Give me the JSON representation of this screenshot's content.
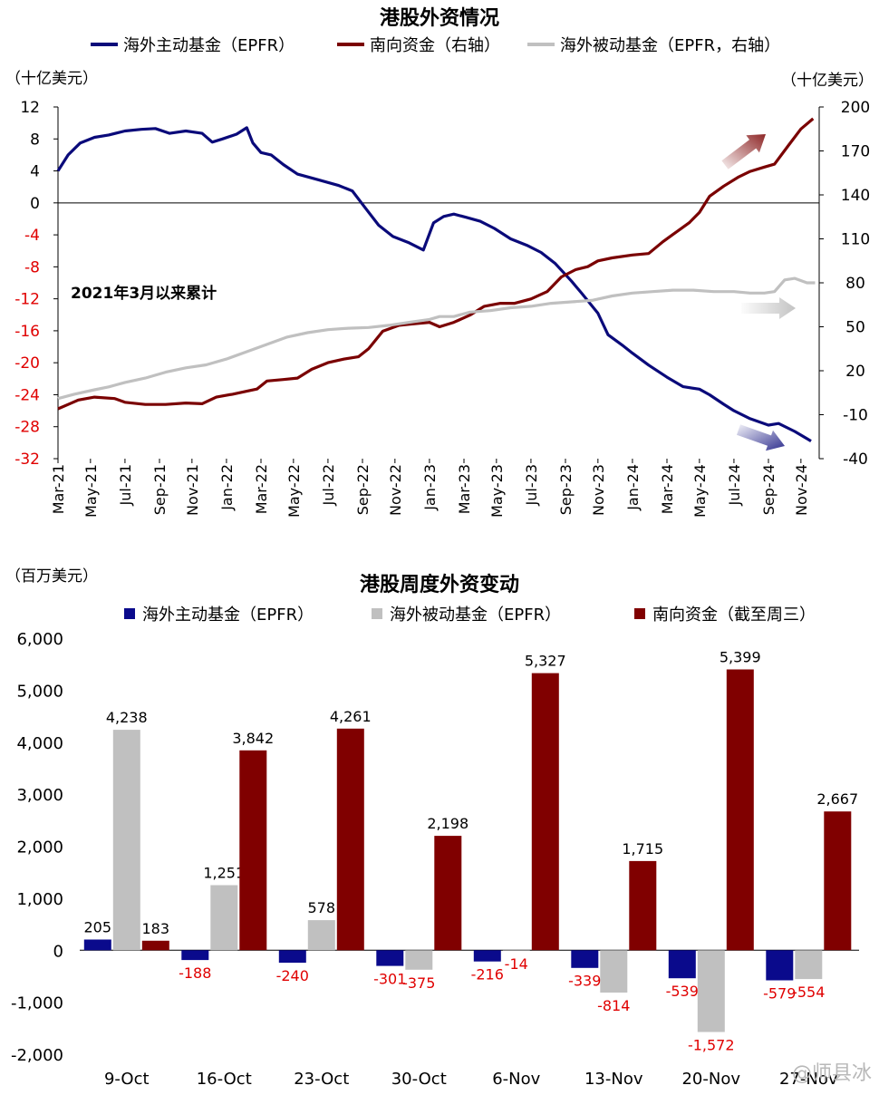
{
  "chart_data": [
    {
      "type": "line",
      "title": "港股外资情况",
      "legend_placement": "top",
      "left_unit": "（十亿美元）",
      "right_unit": "（十亿美元）",
      "annotation": "2021年3月以来累计",
      "yleft_ticks": [
        12,
        8,
        4,
        0,
        -4,
        -8,
        -12,
        -16,
        -20,
        -24,
        -28,
        -32
      ],
      "yleft_range": [
        -32,
        12
      ],
      "yright_ticks": [
        200,
        170,
        140,
        110,
        80,
        50,
        20,
        -10,
        -40
      ],
      "yright_range": [
        -40,
        200
      ],
      "x_range": [
        2021.17,
        2024.92
      ],
      "x_ticks": [
        {
          "label": "Mar-21",
          "x": 2021.17
        },
        {
          "label": "May-21",
          "x": 2021.33
        },
        {
          "label": "Jul-21",
          "x": 2021.5
        },
        {
          "label": "Sep-21",
          "x": 2021.67
        },
        {
          "label": "Nov-21",
          "x": 2021.83
        },
        {
          "label": "Jan-22",
          "x": 2022.0
        },
        {
          "label": "Mar-22",
          "x": 2022.17
        },
        {
          "label": "May-22",
          "x": 2022.33
        },
        {
          "label": "Jul-22",
          "x": 2022.5
        },
        {
          "label": "Sep-22",
          "x": 2022.67
        },
        {
          "label": "Nov-22",
          "x": 2022.83
        },
        {
          "label": "Jan-23",
          "x": 2023.0
        },
        {
          "label": "Mar-23",
          "x": 2023.17
        },
        {
          "label": "May-23",
          "x": 2023.33
        },
        {
          "label": "Jul-23",
          "x": 2023.5
        },
        {
          "label": "Sep-23",
          "x": 2023.67
        },
        {
          "label": "Nov-23",
          "x": 2023.83
        },
        {
          "label": "Jan-24",
          "x": 2024.0
        },
        {
          "label": "Mar-24",
          "x": 2024.17
        },
        {
          "label": "May-24",
          "x": 2024.33
        },
        {
          "label": "Jul-24",
          "x": 2024.5
        },
        {
          "label": "Sep-24",
          "x": 2024.67
        },
        {
          "label": "Nov-24",
          "x": 2024.83
        }
      ],
      "series": [
        {
          "name": "海外主动基金（EPFR）",
          "axis": "left",
          "color": "#0a0a7a",
          "points": [
            [
              2021.17,
              4
            ],
            [
              2021.22,
              6
            ],
            [
              2021.28,
              7.5
            ],
            [
              2021.35,
              8.2
            ],
            [
              2021.42,
              8.5
            ],
            [
              2021.5,
              9
            ],
            [
              2021.58,
              9.2
            ],
            [
              2021.65,
              9.3
            ],
            [
              2021.72,
              8.7
            ],
            [
              2021.8,
              9
            ],
            [
              2021.88,
              8.7
            ],
            [
              2021.93,
              7.6
            ],
            [
              2021.98,
              8
            ],
            [
              2022.05,
              8.6
            ],
            [
              2022.1,
              9.4
            ],
            [
              2022.13,
              7.5
            ],
            [
              2022.17,
              6.3
            ],
            [
              2022.22,
              6
            ],
            [
              2022.28,
              4.8
            ],
            [
              2022.35,
              3.6
            ],
            [
              2022.45,
              2.9
            ],
            [
              2022.55,
              2.2
            ],
            [
              2022.62,
              1.5
            ],
            [
              2022.68,
              -0.5
            ],
            [
              2022.75,
              -2.8
            ],
            [
              2022.82,
              -4.2
            ],
            [
              2022.9,
              -5
            ],
            [
              2022.97,
              -5.9
            ],
            [
              2023.02,
              -2.5
            ],
            [
              2023.07,
              -1.7
            ],
            [
              2023.12,
              -1.4
            ],
            [
              2023.18,
              -1.8
            ],
            [
              2023.25,
              -2.3
            ],
            [
              2023.32,
              -3.2
            ],
            [
              2023.4,
              -4.5
            ],
            [
              2023.48,
              -5.3
            ],
            [
              2023.55,
              -6.2
            ],
            [
              2023.62,
              -7.6
            ],
            [
              2023.7,
              -9.8
            ],
            [
              2023.75,
              -11.3
            ],
            [
              2023.83,
              -13.8
            ],
            [
              2023.88,
              -16.5
            ],
            [
              2023.95,
              -17.8
            ],
            [
              2024.0,
              -18.8
            ],
            [
              2024.08,
              -20.3
            ],
            [
              2024.17,
              -21.8
            ],
            [
              2024.25,
              -23
            ],
            [
              2024.33,
              -23.3
            ],
            [
              2024.38,
              -24
            ],
            [
              2024.45,
              -25.2
            ],
            [
              2024.5,
              -26
            ],
            [
              2024.58,
              -27
            ],
            [
              2024.67,
              -27.8
            ],
            [
              2024.72,
              -27.6
            ],
            [
              2024.8,
              -28.6
            ],
            [
              2024.88,
              -29.8
            ]
          ]
        },
        {
          "name": "南向资金（右轴）",
          "axis": "right",
          "color": "#7a0000",
          "points": [
            [
              2021.17,
              -6
            ],
            [
              2021.22,
              -3
            ],
            [
              2021.27,
              0
            ],
            [
              2021.35,
              2
            ],
            [
              2021.45,
              1
            ],
            [
              2021.5,
              -1.5
            ],
            [
              2021.6,
              -3
            ],
            [
              2021.7,
              -3
            ],
            [
              2021.8,
              -2
            ],
            [
              2021.88,
              -2.5
            ],
            [
              2021.95,
              2
            ],
            [
              2022.03,
              4
            ],
            [
              2022.1,
              6
            ],
            [
              2022.15,
              7.5
            ],
            [
              2022.2,
              13
            ],
            [
              2022.28,
              14
            ],
            [
              2022.35,
              15
            ],
            [
              2022.42,
              21
            ],
            [
              2022.5,
              25.5
            ],
            [
              2022.58,
              28
            ],
            [
              2022.65,
              29.5
            ],
            [
              2022.7,
              35
            ],
            [
              2022.77,
              47
            ],
            [
              2022.85,
              51
            ],
            [
              2022.92,
              52
            ],
            [
              2023.0,
              53
            ],
            [
              2023.05,
              50
            ],
            [
              2023.12,
              53
            ],
            [
              2023.2,
              58
            ],
            [
              2023.27,
              64
            ],
            [
              2023.35,
              66
            ],
            [
              2023.42,
              66
            ],
            [
              2023.5,
              69
            ],
            [
              2023.58,
              74
            ],
            [
              2023.65,
              84
            ],
            [
              2023.72,
              89
            ],
            [
              2023.78,
              91
            ],
            [
              2023.83,
              95
            ],
            [
              2023.9,
              97
            ],
            [
              2024.0,
              99
            ],
            [
              2024.08,
              100
            ],
            [
              2024.15,
              108
            ],
            [
              2024.2,
              113
            ],
            [
              2024.28,
              121
            ],
            [
              2024.33,
              128
            ],
            [
              2024.38,
              139
            ],
            [
              2024.45,
              146
            ],
            [
              2024.52,
              152
            ],
            [
              2024.58,
              156
            ],
            [
              2024.65,
              159
            ],
            [
              2024.7,
              161
            ],
            [
              2024.77,
              174
            ],
            [
              2024.83,
              185
            ],
            [
              2024.89,
              192
            ]
          ]
        },
        {
          "name": "海外被动基金（EPFR，右轴）",
          "axis": "right",
          "color": "#c0c0c0",
          "points": [
            [
              2021.17,
              1
            ],
            [
              2021.25,
              4
            ],
            [
              2021.35,
              7
            ],
            [
              2021.42,
              9
            ],
            [
              2021.5,
              12
            ],
            [
              2021.6,
              15
            ],
            [
              2021.7,
              19
            ],
            [
              2021.8,
              22
            ],
            [
              2021.9,
              24
            ],
            [
              2022.0,
              28
            ],
            [
              2022.1,
              33
            ],
            [
              2022.2,
              38
            ],
            [
              2022.3,
              43
            ],
            [
              2022.4,
              46
            ],
            [
              2022.5,
              48
            ],
            [
              2022.6,
              49
            ],
            [
              2022.7,
              49.5
            ],
            [
              2022.8,
              51
            ],
            [
              2022.9,
              53
            ],
            [
              2023.0,
              55
            ],
            [
              2023.05,
              57
            ],
            [
              2023.12,
              57
            ],
            [
              2023.2,
              60
            ],
            [
              2023.3,
              61
            ],
            [
              2023.4,
              63
            ],
            [
              2023.5,
              64
            ],
            [
              2023.6,
              66
            ],
            [
              2023.7,
              67
            ],
            [
              2023.8,
              68
            ],
            [
              2023.9,
              71
            ],
            [
              2024.0,
              73
            ],
            [
              2024.1,
              74
            ],
            [
              2024.2,
              75
            ],
            [
              2024.3,
              75
            ],
            [
              2024.4,
              74
            ],
            [
              2024.5,
              74
            ],
            [
              2024.58,
              73
            ],
            [
              2024.65,
              73
            ],
            [
              2024.7,
              74
            ],
            [
              2024.75,
              82
            ],
            [
              2024.8,
              83
            ],
            [
              2024.86,
              80
            ],
            [
              2024.9,
              80
            ]
          ]
        }
      ]
    },
    {
      "type": "bar",
      "title": "港股周度外资变动",
      "unit_label": "（百万美元）",
      "legend_placement": "top",
      "ylim": [
        -2000,
        6000
      ],
      "yticks": [
        6000,
        5000,
        4000,
        3000,
        2000,
        1000,
        0,
        -1000,
        -2000
      ],
      "ytick_labels": [
        "6,000",
        "5,000",
        "4,000",
        "3,000",
        "2,000",
        "1,000",
        "0",
        "-1,000",
        "-2,000"
      ],
      "categories": [
        "9-Oct",
        "16-Oct",
        "23-Oct",
        "30-Oct",
        "6-Nov",
        "13-Nov",
        "20-Nov",
        "27-Nov"
      ],
      "negative_label_color": "#e00000",
      "series": [
        {
          "name": "海外主动基金（EPFR）",
          "color": "#0a0a8c",
          "values": [
            205,
            -188,
            -240,
            -301,
            -216,
            -339,
            -539,
            -579
          ],
          "labels": [
            "205",
            "-188",
            "-240",
            "-301",
            "-216",
            "-339",
            "-539",
            "-579"
          ]
        },
        {
          "name": "海外被动基金（EPFR）",
          "color": "#c0c0c0",
          "values": [
            4238,
            1251,
            578,
            -375,
            -14,
            -814,
            -1572,
            -554
          ],
          "labels": [
            "4,238",
            "1,251",
            "578",
            "-375",
            "-14",
            "-814",
            "-1,572",
            "-554"
          ]
        },
        {
          "name": "南向资金（截至周三）",
          "color": "#800000",
          "values": [
            183,
            3842,
            4261,
            2198,
            5327,
            1715,
            5399,
            2667
          ],
          "labels": [
            "183",
            "3,842",
            "4,261",
            "2,198",
            "5,327",
            "1,715",
            "5,399",
            "2,667"
          ]
        }
      ]
    }
  ],
  "watermark": "@师县冰"
}
